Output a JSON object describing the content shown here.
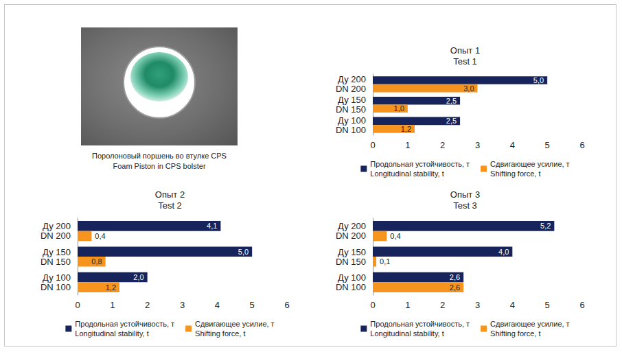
{
  "photo_caption": [
    "Поролоновый поршень во втулке CPS",
    "Foam Piston in CPS bolster"
  ],
  "chart_data": [
    {
      "type": "bar",
      "title": "Опыт 1",
      "subtitle": "Test 1",
      "orientation": "horizontal",
      "categories": [
        "Ду 200\nDN 200",
        "Ду 150\nDN 150",
        "Ду 100\nDN 100"
      ],
      "series": [
        {
          "name": "Продольная устойчивость, т\nLongitudinal stability, t",
          "color": "#16245b",
          "values": [
            5.0,
            2.5,
            2.5
          ],
          "value_labels": [
            "5,0",
            "2,5",
            "2,5"
          ]
        },
        {
          "name": "Сдвигающее усилие, т\nShifting force, t",
          "color": "#f7941d",
          "values": [
            3.0,
            1.0,
            1.2
          ],
          "value_labels": [
            "3,0",
            "1,0",
            "1,2"
          ]
        }
      ],
      "xlim": [
        0,
        6
      ],
      "xticks": [
        0,
        1,
        2,
        3,
        4,
        5,
        6
      ],
      "grid": false,
      "data_labels": true,
      "legend": "bottom"
    },
    {
      "type": "bar",
      "title": "Опыт 2",
      "subtitle": "Test 2",
      "orientation": "horizontal",
      "categories": [
        "Ду 200\nDN 200",
        "Ду 150\nDN 150",
        "Ду 100\nDN 100"
      ],
      "series": [
        {
          "name": "Продольная устойчивость, т\nLongitudinal stability, t",
          "color": "#16245b",
          "values": [
            4.1,
            5.0,
            2.0
          ],
          "value_labels": [
            "4,1",
            "5,0",
            "2,0"
          ]
        },
        {
          "name": "Сдвигающее усилие, т\nShifting force, t",
          "color": "#f7941d",
          "values": [
            0.4,
            0.8,
            1.2
          ],
          "value_labels": [
            "0,4",
            "0,8",
            "1,2"
          ]
        }
      ],
      "xlim": [
        0,
        6
      ],
      "xticks": [
        0,
        1,
        2,
        3,
        4,
        5,
        6
      ],
      "grid": false,
      "data_labels": true,
      "legend": "bottom"
    },
    {
      "type": "bar",
      "title": "Опыт 3",
      "subtitle": "Test 3",
      "orientation": "horizontal",
      "categories": [
        "Ду 200\nDN 200",
        "Ду 150\nDN 150",
        "Ду 100\nDN 100"
      ],
      "series": [
        {
          "name": "Продольная устойчивость, т\nLongitudinal stability, t",
          "color": "#16245b",
          "values": [
            5.2,
            4.0,
            2.6
          ],
          "value_labels": [
            "5,2",
            "4,0",
            "2,6"
          ]
        },
        {
          "name": "Сдвигающее усилие, т\nShifting force, t",
          "color": "#f7941d",
          "values": [
            0.4,
            0.1,
            2.6
          ],
          "value_labels": [
            "0,4",
            "0,1",
            "2,6"
          ]
        }
      ],
      "xlim": [
        0,
        6
      ],
      "xticks": [
        0,
        1,
        2,
        3,
        4,
        5,
        6
      ],
      "grid": false,
      "data_labels": true,
      "legend": "bottom"
    }
  ]
}
